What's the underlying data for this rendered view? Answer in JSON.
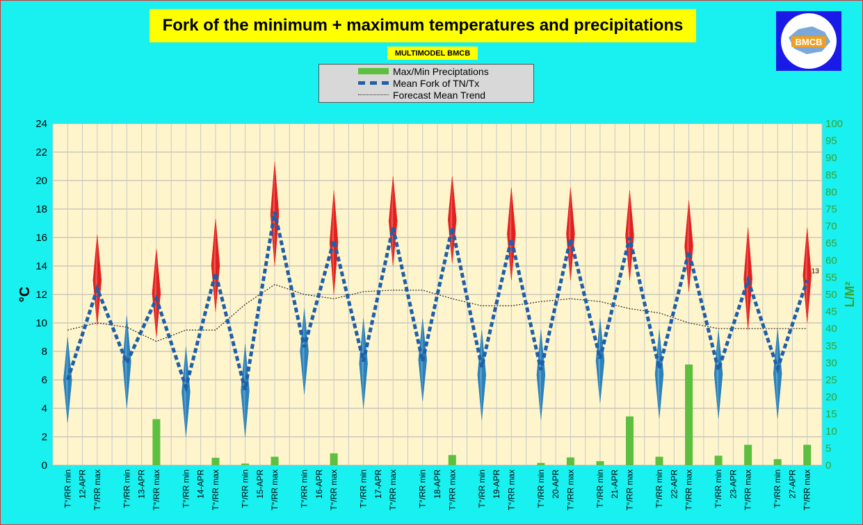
{
  "title": "Fork of the minimum + maximum temperatures and precipitations",
  "subtitle": "MULTIMODEL BMCB",
  "logo": {
    "icon": "bmcb-logo-icon",
    "text": "BMCB"
  },
  "legend": [
    {
      "label": "Max/Min Preciptations",
      "symbol": "green-bar"
    },
    {
      "label": "Mean Fork of TN/Tx",
      "symbol": "blue-dashed-line"
    },
    {
      "label": "Forecast Mean Trend",
      "symbol": "black-dotted-line"
    }
  ],
  "colors": {
    "background": "#19f0f0",
    "plot_area": "#fff5cc",
    "precip": "#5cbf3f",
    "mean_fork": "#1f5fa8",
    "trend": "#222222",
    "max_diamond": "#e01010",
    "min_diamond": "#1a78b8",
    "right_axis": "#3aa030"
  },
  "chart_data": {
    "type": "line",
    "ylabel": "°C",
    "y2label": "L/M²",
    "ylim": [
      0,
      24
    ],
    "y2lim": [
      0,
      100
    ],
    "yticks": [
      0,
      2,
      4,
      6,
      8,
      10,
      12,
      14,
      16,
      18,
      20,
      22,
      24
    ],
    "y2ticks": [
      0,
      5,
      10,
      15,
      20,
      25,
      30,
      35,
      40,
      45,
      50,
      55,
      60,
      65,
      70,
      75,
      80,
      85,
      90,
      95,
      100
    ],
    "grid": true,
    "dates": [
      "12-APR",
      "13-APR",
      "14-APR",
      "15-APR",
      "16-APR",
      "17-APR",
      "18-APR",
      "19-APR",
      "20-APR",
      "21-APR",
      "22-APR",
      "23-APR",
      "27-APR"
    ],
    "slot_labels": [
      "T°/RR min",
      "T°/RR max"
    ],
    "mean_fork": [
      6,
      12.4,
      7.2,
      11.7,
      5.5,
      13.5,
      5.3,
      17.8,
      8.3,
      15.8,
      7.3,
      16.7,
      7.3,
      16.7,
      6.9,
      15.9,
      6.7,
      15.9,
      7.5,
      16.0,
      6.8,
      15.0,
      6.7,
      13.0,
      6.8,
      13.0
    ],
    "min_range": [
      [
        3,
        9
      ],
      [
        4,
        10.5
      ],
      [
        2,
        8.3
      ],
      [
        2,
        8.5
      ],
      [
        5,
        11
      ],
      [
        4,
        10.3
      ],
      [
        4.5,
        10.3
      ],
      [
        3.2,
        9.5
      ],
      [
        3.2,
        9.5
      ],
      [
        4.4,
        10.3
      ],
      [
        3.3,
        9.5
      ],
      [
        3.3,
        9.5
      ],
      [
        3.3,
        9.6
      ]
    ],
    "max_range": [
      [
        9.8,
        16.2
      ],
      [
        9.0,
        15.2
      ],
      [
        10.8,
        17.3
      ],
      [
        14.0,
        21.3
      ],
      [
        12.0,
        19.3
      ],
      [
        14.0,
        20.3
      ],
      [
        14.2,
        20.3
      ],
      [
        13.0,
        19.5
      ],
      [
        13.0,
        19.5
      ],
      [
        13.0,
        19.3
      ],
      [
        12.2,
        18.6
      ],
      [
        9.5,
        16.7
      ],
      [
        10.0,
        16.7
      ]
    ],
    "trend": [
      9.5,
      10,
      9.7,
      8.7,
      9.5,
      9.5,
      11.3,
      12.7,
      12,
      11.7,
      12.2,
      12.3,
      12.3,
      11.7,
      11.2,
      11.2,
      11.5,
      11.7,
      11.5,
      11,
      10.7,
      10,
      9.6,
      9.6,
      9.6,
      9.6
    ],
    "precip": [
      0,
      0,
      0,
      13.5,
      0,
      2.2,
      0.5,
      2.5,
      0,
      3.5,
      0,
      0,
      0,
      3,
      0,
      0,
      0.7,
      2.3,
      1.2,
      14.3,
      2.5,
      29.5,
      2.8,
      6,
      1.8,
      6
    ],
    "annotation": "13"
  }
}
